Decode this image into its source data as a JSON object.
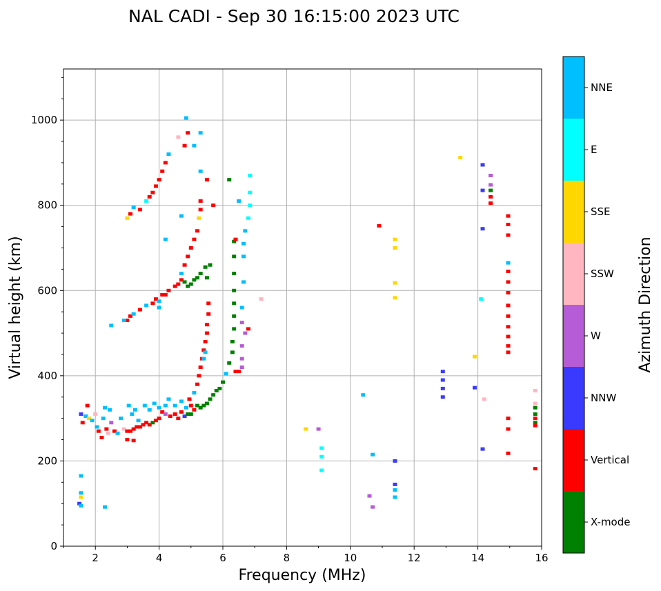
{
  "chart_data": {
    "type": "scatter",
    "title": "NAL CADI - Sep 30 16:15:00 2023 UTC",
    "xlabel": "Frequency (MHz)",
    "ylabel": "Virtual height (km)",
    "xlim": [
      1,
      16
    ],
    "ylim": [
      0,
      1120
    ],
    "xticks": [
      2,
      4,
      6,
      8,
      10,
      12,
      14,
      16
    ],
    "yticks": [
      0,
      200,
      400,
      600,
      800,
      1000
    ],
    "grid": true,
    "colorbar": {
      "label": "Azimuth Direction",
      "position": "right",
      "categories": [
        {
          "name": "X-mode",
          "color": "#008000"
        },
        {
          "name": "Vertical",
          "color": "#ff0000"
        },
        {
          "name": "NNW",
          "color": "#3a3aff"
        },
        {
          "name": "W",
          "color": "#b65cd6"
        },
        {
          "name": "SSW",
          "color": "#ffb6c1"
        },
        {
          "name": "SSE",
          "color": "#ffd700"
        },
        {
          "name": "E",
          "color": "#00ffff"
        },
        {
          "name": "NNE",
          "color": "#00bfff"
        }
      ]
    },
    "points": [
      {
        "f": 1.5,
        "h": 100,
        "c": "NNW"
      },
      {
        "f": 1.55,
        "h": 95,
        "c": "NNE"
      },
      {
        "f": 1.55,
        "h": 115,
        "c": "SSE"
      },
      {
        "f": 1.55,
        "h": 125,
        "c": "NNE"
      },
      {
        "f": 1.55,
        "h": 165,
        "c": "NNE"
      },
      {
        "f": 2.3,
        "h": 92,
        "c": "NNE"
      },
      {
        "f": 1.55,
        "h": 310,
        "c": "NNW"
      },
      {
        "f": 1.6,
        "h": 290,
        "c": "Vertical"
      },
      {
        "f": 1.7,
        "h": 305,
        "c": "NNE"
      },
      {
        "f": 1.8,
        "h": 300,
        "c": "SSE"
      },
      {
        "f": 1.9,
        "h": 295,
        "c": "NNE"
      },
      {
        "f": 1.75,
        "h": 330,
        "c": "Vertical"
      },
      {
        "f": 2.0,
        "h": 310,
        "c": "SSW"
      },
      {
        "f": 2.05,
        "h": 280,
        "c": "NNE"
      },
      {
        "f": 2.1,
        "h": 270,
        "c": "Vertical"
      },
      {
        "f": 2.2,
        "h": 255,
        "c": "Vertical"
      },
      {
        "f": 2.25,
        "h": 300,
        "c": "NNE"
      },
      {
        "f": 2.3,
        "h": 325,
        "c": "NNE"
      },
      {
        "f": 2.35,
        "h": 275,
        "c": "Vertical"
      },
      {
        "f": 2.4,
        "h": 265,
        "c": "SSW"
      },
      {
        "f": 2.45,
        "h": 320,
        "c": "NNE"
      },
      {
        "f": 2.5,
        "h": 290,
        "c": "W"
      },
      {
        "f": 2.6,
        "h": 270,
        "c": "Vertical"
      },
      {
        "f": 2.7,
        "h": 265,
        "c": "NNE"
      },
      {
        "f": 2.8,
        "h": 300,
        "c": "NNE"
      },
      {
        "f": 2.9,
        "h": 275,
        "c": "SSW"
      },
      {
        "f": 3.0,
        "h": 270,
        "c": "Vertical"
      },
      {
        "f": 3.1,
        "h": 270,
        "c": "Vertical"
      },
      {
        "f": 3.2,
        "h": 275,
        "c": "Vertical"
      },
      {
        "f": 3.3,
        "h": 280,
        "c": "Vertical"
      },
      {
        "f": 3.05,
        "h": 330,
        "c": "NNE"
      },
      {
        "f": 3.15,
        "h": 310,
        "c": "NNE"
      },
      {
        "f": 3.25,
        "h": 320,
        "c": "NNE"
      },
      {
        "f": 3.35,
        "h": 295,
        "c": "NNE"
      },
      {
        "f": 3.0,
        "h": 250,
        "c": "Vertical"
      },
      {
        "f": 3.2,
        "h": 248,
        "c": "Vertical"
      },
      {
        "f": 3.4,
        "h": 280,
        "c": "Vertical"
      },
      {
        "f": 3.5,
        "h": 285,
        "c": "Vertical"
      },
      {
        "f": 3.6,
        "h": 290,
        "c": "Vertical"
      },
      {
        "f": 3.7,
        "h": 285,
        "c": "Vertical"
      },
      {
        "f": 3.8,
        "h": 290,
        "c": "X-mode"
      },
      {
        "f": 3.9,
        "h": 295,
        "c": "Vertical"
      },
      {
        "f": 4.0,
        "h": 300,
        "c": "Vertical"
      },
      {
        "f": 3.55,
        "h": 330,
        "c": "NNE"
      },
      {
        "f": 3.7,
        "h": 320,
        "c": "NNE"
      },
      {
        "f": 3.85,
        "h": 335,
        "c": "NNE"
      },
      {
        "f": 4.0,
        "h": 325,
        "c": "NNE"
      },
      {
        "f": 4.1,
        "h": 315,
        "c": "Vertical"
      },
      {
        "f": 4.2,
        "h": 330,
        "c": "NNE"
      },
      {
        "f": 4.3,
        "h": 345,
        "c": "NNE"
      },
      {
        "f": 4.2,
        "h": 310,
        "c": "W"
      },
      {
        "f": 4.35,
        "h": 305,
        "c": "Vertical"
      },
      {
        "f": 4.5,
        "h": 310,
        "c": "Vertical"
      },
      {
        "f": 4.6,
        "h": 300,
        "c": "Vertical"
      },
      {
        "f": 4.7,
        "h": 315,
        "c": "Vertical"
      },
      {
        "f": 4.8,
        "h": 305,
        "c": "NNW"
      },
      {
        "f": 4.9,
        "h": 310,
        "c": "X-mode"
      },
      {
        "f": 4.5,
        "h": 330,
        "c": "NNE"
      },
      {
        "f": 4.7,
        "h": 340,
        "c": "NNE"
      },
      {
        "f": 4.85,
        "h": 325,
        "c": "NNE"
      },
      {
        "f": 4.95,
        "h": 345,
        "c": "Vertical"
      },
      {
        "f": 5.0,
        "h": 330,
        "c": "Vertical"
      },
      {
        "f": 5.0,
        "h": 310,
        "c": "X-mode"
      },
      {
        "f": 5.1,
        "h": 320,
        "c": "Vertical"
      },
      {
        "f": 5.2,
        "h": 330,
        "c": "X-mode"
      },
      {
        "f": 5.3,
        "h": 325,
        "c": "X-mode"
      },
      {
        "f": 5.4,
        "h": 330,
        "c": "X-mode"
      },
      {
        "f": 5.5,
        "h": 335,
        "c": "X-mode"
      },
      {
        "f": 5.6,
        "h": 345,
        "c": "X-mode"
      },
      {
        "f": 5.7,
        "h": 355,
        "c": "X-mode"
      },
      {
        "f": 5.8,
        "h": 365,
        "c": "X-mode"
      },
      {
        "f": 5.9,
        "h": 370,
        "c": "X-mode"
      },
      {
        "f": 6.0,
        "h": 385,
        "c": "X-mode"
      },
      {
        "f": 5.1,
        "h": 360,
        "c": "NNE"
      },
      {
        "f": 5.2,
        "h": 380,
        "c": "Vertical"
      },
      {
        "f": 5.25,
        "h": 400,
        "c": "Vertical"
      },
      {
        "f": 5.3,
        "h": 420,
        "c": "Vertical"
      },
      {
        "f": 5.35,
        "h": 440,
        "c": "Vertical"
      },
      {
        "f": 5.4,
        "h": 460,
        "c": "Vertical"
      },
      {
        "f": 5.45,
        "h": 480,
        "c": "Vertical"
      },
      {
        "f": 5.5,
        "h": 500,
        "c": "Vertical"
      },
      {
        "f": 5.5,
        "h": 520,
        "c": "Vertical"
      },
      {
        "f": 5.55,
        "h": 545,
        "c": "Vertical"
      },
      {
        "f": 5.55,
        "h": 570,
        "c": "Vertical"
      },
      {
        "f": 5.4,
        "h": 440,
        "c": "NNE"
      },
      {
        "f": 5.45,
        "h": 455,
        "c": "NNE"
      },
      {
        "f": 6.1,
        "h": 405,
        "c": "NNE"
      },
      {
        "f": 6.2,
        "h": 430,
        "c": "X-mode"
      },
      {
        "f": 6.3,
        "h": 455,
        "c": "X-mode"
      },
      {
        "f": 6.3,
        "h": 480,
        "c": "X-mode"
      },
      {
        "f": 6.35,
        "h": 510,
        "c": "X-mode"
      },
      {
        "f": 6.35,
        "h": 540,
        "c": "X-mode"
      },
      {
        "f": 6.35,
        "h": 570,
        "c": "X-mode"
      },
      {
        "f": 6.35,
        "h": 600,
        "c": "X-mode"
      },
      {
        "f": 6.35,
        "h": 640,
        "c": "X-mode"
      },
      {
        "f": 6.35,
        "h": 680,
        "c": "X-mode"
      },
      {
        "f": 6.35,
        "h": 715,
        "c": "X-mode"
      },
      {
        "f": 6.4,
        "h": 410,
        "c": "Vertical"
      },
      {
        "f": 6.5,
        "h": 410,
        "c": "Vertical"
      },
      {
        "f": 6.6,
        "h": 420,
        "c": "W"
      },
      {
        "f": 6.6,
        "h": 440,
        "c": "W"
      },
      {
        "f": 6.6,
        "h": 470,
        "c": "W"
      },
      {
        "f": 6.7,
        "h": 500,
        "c": "W"
      },
      {
        "f": 6.6,
        "h": 525,
        "c": "W"
      },
      {
        "f": 6.8,
        "h": 510,
        "c": "Vertical"
      },
      {
        "f": 6.6,
        "h": 560,
        "c": "NNE"
      },
      {
        "f": 6.65,
        "h": 620,
        "c": "NNE"
      },
      {
        "f": 6.65,
        "h": 680,
        "c": "NNE"
      },
      {
        "f": 6.65,
        "h": 710,
        "c": "NNE"
      },
      {
        "f": 6.7,
        "h": 740,
        "c": "NNE"
      },
      {
        "f": 6.8,
        "h": 770,
        "c": "E"
      },
      {
        "f": 6.85,
        "h": 800,
        "c": "E"
      },
      {
        "f": 6.85,
        "h": 830,
        "c": "E"
      },
      {
        "f": 6.85,
        "h": 870,
        "c": "E"
      },
      {
        "f": 6.2,
        "h": 860,
        "c": "X-mode"
      },
      {
        "f": 6.5,
        "h": 810,
        "c": "NNE"
      },
      {
        "f": 7.2,
        "h": 580,
        "c": "SSW"
      },
      {
        "f": 6.4,
        "h": 720,
        "c": "Vertical"
      },
      {
        "f": 3.0,
        "h": 530,
        "c": "Vertical"
      },
      {
        "f": 3.1,
        "h": 540,
        "c": "Vertical"
      },
      {
        "f": 3.2,
        "h": 545,
        "c": "NNE"
      },
      {
        "f": 3.4,
        "h": 555,
        "c": "Vertical"
      },
      {
        "f": 3.6,
        "h": 565,
        "c": "NNE"
      },
      {
        "f": 3.8,
        "h": 570,
        "c": "Vertical"
      },
      {
        "f": 3.9,
        "h": 580,
        "c": "Vertical"
      },
      {
        "f": 4.0,
        "h": 575,
        "c": "NNE"
      },
      {
        "f": 4.1,
        "h": 590,
        "c": "Vertical"
      },
      {
        "f": 4.2,
        "h": 590,
        "c": "Vertical"
      },
      {
        "f": 4.3,
        "h": 600,
        "c": "Vertical"
      },
      {
        "f": 4.5,
        "h": 610,
        "c": "Vertical"
      },
      {
        "f": 4.6,
        "h": 615,
        "c": "Vertical"
      },
      {
        "f": 4.7,
        "h": 625,
        "c": "Vertical"
      },
      {
        "f": 4.8,
        "h": 620,
        "c": "X-mode"
      },
      {
        "f": 4.9,
        "h": 610,
        "c": "X-mode"
      },
      {
        "f": 5.0,
        "h": 615,
        "c": "X-mode"
      },
      {
        "f": 5.1,
        "h": 625,
        "c": "X-mode"
      },
      {
        "f": 5.2,
        "h": 630,
        "c": "X-mode"
      },
      {
        "f": 5.3,
        "h": 640,
        "c": "X-mode"
      },
      {
        "f": 5.45,
        "h": 655,
        "c": "X-mode"
      },
      {
        "f": 5.5,
        "h": 630,
        "c": "X-mode"
      },
      {
        "f": 5.6,
        "h": 660,
        "c": "X-mode"
      },
      {
        "f": 2.5,
        "h": 518,
        "c": "NNE"
      },
      {
        "f": 2.9,
        "h": 530,
        "c": "NNE"
      },
      {
        "f": 4.0,
        "h": 560,
        "c": "NNE"
      },
      {
        "f": 4.7,
        "h": 640,
        "c": "NNE"
      },
      {
        "f": 4.8,
        "h": 660,
        "c": "Vertical"
      },
      {
        "f": 4.9,
        "h": 680,
        "c": "Vertical"
      },
      {
        "f": 5.0,
        "h": 700,
        "c": "Vertical"
      },
      {
        "f": 5.1,
        "h": 720,
        "c": "Vertical"
      },
      {
        "f": 5.2,
        "h": 740,
        "c": "Vertical"
      },
      {
        "f": 5.25,
        "h": 770,
        "c": "SSE"
      },
      {
        "f": 5.3,
        "h": 790,
        "c": "Vertical"
      },
      {
        "f": 5.3,
        "h": 810,
        "c": "Vertical"
      },
      {
        "f": 3.0,
        "h": 770,
        "c": "SSE"
      },
      {
        "f": 3.1,
        "h": 780,
        "c": "Vertical"
      },
      {
        "f": 3.2,
        "h": 795,
        "c": "NNE"
      },
      {
        "f": 3.4,
        "h": 790,
        "c": "Vertical"
      },
      {
        "f": 3.6,
        "h": 810,
        "c": "E"
      },
      {
        "f": 3.7,
        "h": 820,
        "c": "Vertical"
      },
      {
        "f": 3.8,
        "h": 830,
        "c": "Vertical"
      },
      {
        "f": 3.9,
        "h": 845,
        "c": "Vertical"
      },
      {
        "f": 4.0,
        "h": 860,
        "c": "Vertical"
      },
      {
        "f": 4.1,
        "h": 880,
        "c": "Vertical"
      },
      {
        "f": 4.2,
        "h": 900,
        "c": "Vertical"
      },
      {
        "f": 4.3,
        "h": 920,
        "c": "NNE"
      },
      {
        "f": 4.7,
        "h": 775,
        "c": "NNE"
      },
      {
        "f": 4.2,
        "h": 720,
        "c": "NNE"
      },
      {
        "f": 4.6,
        "h": 960,
        "c": "SSW"
      },
      {
        "f": 4.8,
        "h": 940,
        "c": "Vertical"
      },
      {
        "f": 4.9,
        "h": 970,
        "c": "Vertical"
      },
      {
        "f": 5.1,
        "h": 940,
        "c": "NNE"
      },
      {
        "f": 5.3,
        "h": 970,
        "c": "NNE"
      },
      {
        "f": 4.85,
        "h": 1005,
        "c": "NNE"
      },
      {
        "f": 5.3,
        "h": 880,
        "c": "NNE"
      },
      {
        "f": 5.5,
        "h": 860,
        "c": "Vertical"
      },
      {
        "f": 5.7,
        "h": 800,
        "c": "Vertical"
      },
      {
        "f": 8.6,
        "h": 275,
        "c": "SSE"
      },
      {
        "f": 9.0,
        "h": 275,
        "c": "W"
      },
      {
        "f": 9.1,
        "h": 230,
        "c": "E"
      },
      {
        "f": 9.1,
        "h": 210,
        "c": "E"
      },
      {
        "f": 9.1,
        "h": 178,
        "c": "E"
      },
      {
        "f": 10.4,
        "h": 355,
        "c": "NNE"
      },
      {
        "f": 10.7,
        "h": 215,
        "c": "NNE"
      },
      {
        "f": 10.6,
        "h": 118,
        "c": "W"
      },
      {
        "f": 10.7,
        "h": 92,
        "c": "W"
      },
      {
        "f": 10.9,
        "h": 752,
        "c": "Vertical"
      },
      {
        "f": 11.4,
        "h": 200,
        "c": "NNW"
      },
      {
        "f": 11.4,
        "h": 145,
        "c": "NNW"
      },
      {
        "f": 11.4,
        "h": 132,
        "c": "NNE"
      },
      {
        "f": 11.4,
        "h": 115,
        "c": "NNE"
      },
      {
        "f": 11.4,
        "h": 720,
        "c": "SSE"
      },
      {
        "f": 11.4,
        "h": 700,
        "c": "SSE"
      },
      {
        "f": 11.4,
        "h": 618,
        "c": "SSE"
      },
      {
        "f": 11.4,
        "h": 583,
        "c": "SSE"
      },
      {
        "f": 12.9,
        "h": 410,
        "c": "NNW"
      },
      {
        "f": 12.9,
        "h": 390,
        "c": "NNW"
      },
      {
        "f": 12.9,
        "h": 370,
        "c": "NNW"
      },
      {
        "f": 12.9,
        "h": 350,
        "c": "NNW"
      },
      {
        "f": 13.45,
        "h": 912,
        "c": "SSE"
      },
      {
        "f": 13.9,
        "h": 445,
        "c": "SSE"
      },
      {
        "f": 13.9,
        "h": 372,
        "c": "NNW"
      },
      {
        "f": 14.15,
        "h": 895,
        "c": "NNW"
      },
      {
        "f": 14.15,
        "h": 835,
        "c": "NNW"
      },
      {
        "f": 14.15,
        "h": 745,
        "c": "NNW"
      },
      {
        "f": 14.15,
        "h": 228,
        "c": "NNW"
      },
      {
        "f": 14.2,
        "h": 345,
        "c": "SSW"
      },
      {
        "f": 14.1,
        "h": 580,
        "c": "E"
      },
      {
        "f": 14.4,
        "h": 870,
        "c": "W"
      },
      {
        "f": 14.4,
        "h": 848,
        "c": "W"
      },
      {
        "f": 14.4,
        "h": 835,
        "c": "X-mode"
      },
      {
        "f": 14.4,
        "h": 820,
        "c": "Vertical"
      },
      {
        "f": 14.4,
        "h": 805,
        "c": "Vertical"
      },
      {
        "f": 14.95,
        "h": 775,
        "c": "Vertical"
      },
      {
        "f": 14.95,
        "h": 755,
        "c": "Vertical"
      },
      {
        "f": 14.95,
        "h": 730,
        "c": "Vertical"
      },
      {
        "f": 14.95,
        "h": 665,
        "c": "NNE"
      },
      {
        "f": 14.95,
        "h": 645,
        "c": "Vertical"
      },
      {
        "f": 14.95,
        "h": 620,
        "c": "Vertical"
      },
      {
        "f": 14.95,
        "h": 595,
        "c": "Vertical"
      },
      {
        "f": 14.95,
        "h": 565,
        "c": "Vertical"
      },
      {
        "f": 14.95,
        "h": 540,
        "c": "Vertical"
      },
      {
        "f": 14.95,
        "h": 515,
        "c": "Vertical"
      },
      {
        "f": 14.95,
        "h": 492,
        "c": "Vertical"
      },
      {
        "f": 14.95,
        "h": 470,
        "c": "Vertical"
      },
      {
        "f": 14.95,
        "h": 455,
        "c": "Vertical"
      },
      {
        "f": 14.95,
        "h": 300,
        "c": "Vertical"
      },
      {
        "f": 14.95,
        "h": 275,
        "c": "Vertical"
      },
      {
        "f": 14.95,
        "h": 218,
        "c": "Vertical"
      },
      {
        "f": 15.8,
        "h": 365,
        "c": "SSW"
      },
      {
        "f": 15.8,
        "h": 335,
        "c": "SSW"
      },
      {
        "f": 15.8,
        "h": 325,
        "c": "X-mode"
      },
      {
        "f": 15.8,
        "h": 310,
        "c": "X-mode"
      },
      {
        "f": 15.8,
        "h": 300,
        "c": "Vertical"
      },
      {
        "f": 15.8,
        "h": 290,
        "c": "X-mode"
      },
      {
        "f": 15.8,
        "h": 283,
        "c": "Vertical"
      },
      {
        "f": 15.8,
        "h": 182,
        "c": "Vertical"
      }
    ]
  }
}
